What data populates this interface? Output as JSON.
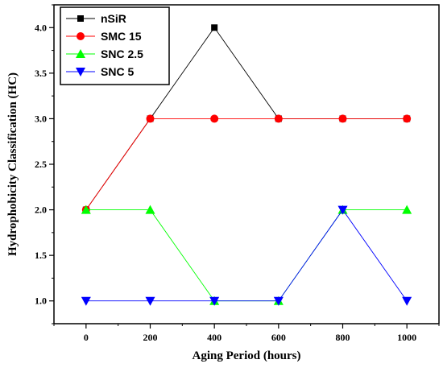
{
  "chart_data": {
    "type": "line",
    "title": "",
    "xlabel": "Aging Period (hours)",
    "ylabel": "Hydrophobicity Classification (HC)",
    "xlim": [
      -100,
      1100
    ],
    "ylim": [
      0.75,
      4.25
    ],
    "x_ticks": [
      "0",
      "200",
      "400",
      "600",
      "800",
      "1000"
    ],
    "y_ticks": [
      "1.0",
      "1.5",
      "2.0",
      "2.5",
      "3.0",
      "3.5",
      "4.0"
    ],
    "x": [
      0,
      200,
      400,
      600,
      800,
      1000
    ],
    "grid": false,
    "legend_position": "top-left",
    "series": [
      {
        "name": "nSiR",
        "color": "#000000",
        "marker": "square",
        "values": [
          2,
          3,
          4,
          3,
          3,
          3
        ]
      },
      {
        "name": "SMC 15",
        "color": "#ff0000",
        "marker": "circle",
        "values": [
          2,
          3,
          3,
          3,
          3,
          3
        ]
      },
      {
        "name": "SNC 2.5",
        "color": "#00ff00",
        "marker": "triangle-up",
        "values": [
          2,
          2,
          1,
          1,
          2,
          2
        ]
      },
      {
        "name": "SNC 5",
        "color": "#0000ff",
        "marker": "triangle-down",
        "values": [
          1,
          1,
          1,
          1,
          2,
          1
        ]
      }
    ]
  }
}
